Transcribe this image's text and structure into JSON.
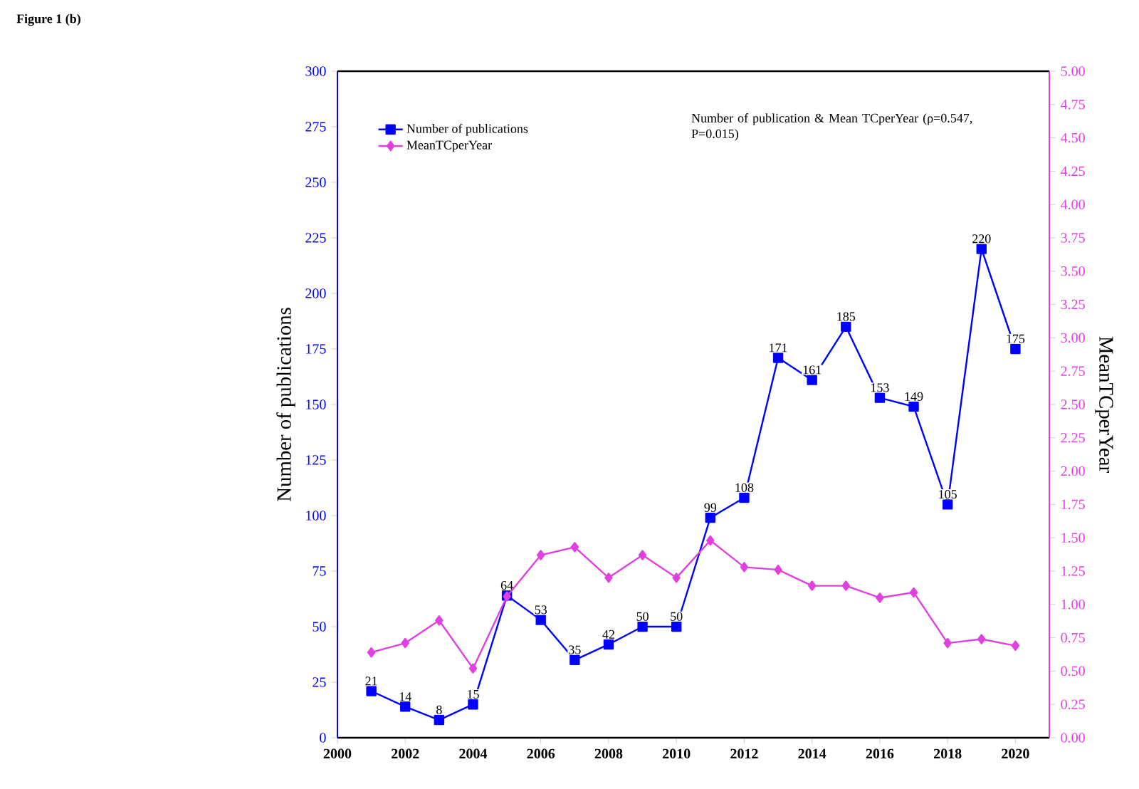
{
  "chart_data": {
    "type": "line",
    "title": "Figure 1 (b)",
    "xlabel": null,
    "ylabel": "Number of publications",
    "y2label": "MeanTCperYear",
    "x": [
      2001,
      2002,
      2003,
      2004,
      2005,
      2006,
      2007,
      2008,
      2009,
      2010,
      2011,
      2012,
      2013,
      2014,
      2015,
      2016,
      2017,
      2018,
      2019,
      2020
    ],
    "series": [
      {
        "name": "Number of publications",
        "color": "#0000ff",
        "marker": "square",
        "values": [
          21,
          14,
          8,
          15,
          64,
          53,
          35,
          42,
          50,
          50,
          99,
          108,
          171,
          161,
          185,
          153,
          149,
          105,
          220,
          175
        ],
        "value_labels": [
          "21",
          "14",
          "8",
          "15",
          "64",
          "53",
          "35",
          "42",
          "50",
          "50",
          "99",
          "108",
          "171",
          "161",
          "185",
          "153",
          "149",
          "105",
          "220",
          "175"
        ]
      },
      {
        "name": "MeanTCperYear",
        "color": "#e040e0",
        "marker": "diamond",
        "axis": "y2",
        "values": [
          0.64,
          0.71,
          0.88,
          0.52,
          1.06,
          1.37,
          1.43,
          1.2,
          1.37,
          1.2,
          1.48,
          1.28,
          1.26,
          1.14,
          1.14,
          1.05,
          1.09,
          0.71,
          0.74,
          0.69
        ]
      }
    ],
    "xlim": [
      2000,
      2021
    ],
    "xticks": [
      2000,
      2002,
      2004,
      2006,
      2008,
      2010,
      2012,
      2014,
      2016,
      2018,
      2020
    ],
    "ylim": [
      0,
      300
    ],
    "yticks": [
      0,
      25,
      50,
      75,
      100,
      125,
      150,
      175,
      200,
      225,
      250,
      275,
      300
    ],
    "y2lim": [
      0,
      5
    ],
    "y2ticks": [
      {
        "value": 0,
        "label": "0.00"
      },
      {
        "value": 0.25,
        "label": "0.25"
      },
      {
        "value": 0.5,
        "label": "0.50"
      },
      {
        "value": 0.75,
        "label": "0.75"
      },
      {
        "value": 1,
        "label": "1.00"
      },
      {
        "value": 1.25,
        "label": "1.25"
      },
      {
        "value": 1.5,
        "label": "1.50"
      },
      {
        "value": 1.75,
        "label": "1.75"
      },
      {
        "value": 2,
        "label": "2.00"
      },
      {
        "value": 2.25,
        "label": "2.25"
      },
      {
        "value": 2.5,
        "label": "2.50"
      },
      {
        "value": 2.75,
        "label": "2.75"
      },
      {
        "value": 3,
        "label": "3.00"
      },
      {
        "value": 3.25,
        "label": "3.25"
      },
      {
        "value": 3.5,
        "label": "3.50"
      },
      {
        "value": 3.75,
        "label": "3.75"
      },
      {
        "value": 4,
        "label": "4.00"
      },
      {
        "value": 4.25,
        "label": "4.25"
      },
      {
        "value": 4.5,
        "label": "4.50"
      },
      {
        "value": 4.75,
        "label": "4.75"
      },
      {
        "value": 5,
        "label": "5.00"
      }
    ],
    "annotations": [
      "Number of publication & Mean TCperYear (ρ=0.547, P=0.015)"
    ],
    "grid": false,
    "legend": "top left",
    "line_style": "solid"
  }
}
